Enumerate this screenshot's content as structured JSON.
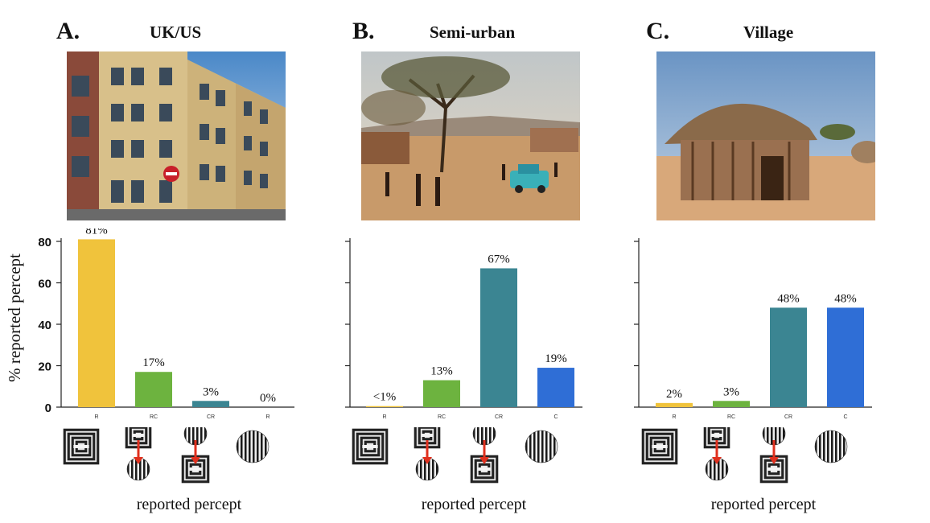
{
  "ylabel": "% reported percept",
  "xlabel": "reported percept",
  "colors": {
    "R": "#f0c33c",
    "RC": "#6db33f",
    "CR": "#3b8592",
    "C": "#2f6ed6",
    "arrow": "#e0301e"
  },
  "panels": [
    {
      "letter": "A.",
      "title": "UK/US",
      "photo_icon": "apartment-building-photo",
      "chart_data": {
        "type": "bar",
        "categories": [
          "R",
          "RC",
          "CR",
          "R"
        ],
        "values": [
          81,
          17,
          3,
          0
        ],
        "labels": [
          "81%",
          "17%",
          "3%",
          "0%"
        ],
        "ylabel": "% reported percept",
        "xlabel": "reported percept",
        "ylim": [
          0,
          80
        ],
        "yticks": [
          0,
          20,
          40,
          60,
          80
        ],
        "colors": [
          "#f0c33c",
          "#6db33f",
          "#3b8592",
          "#3b8592"
        ]
      }
    },
    {
      "letter": "B.",
      "title": "Semi-urban",
      "photo_icon": "town-street-photo",
      "chart_data": {
        "type": "bar",
        "categories": [
          "R",
          "RC",
          "CR",
          "C"
        ],
        "values": [
          0.5,
          13,
          67,
          19
        ],
        "labels": [
          "<1%",
          "13%",
          "67%",
          "19%"
        ],
        "xlabel": "reported percept",
        "ylim": [
          0,
          80
        ],
        "colors": [
          "#f0c33c",
          "#6db33f",
          "#3b8592",
          "#2f6ed6"
        ]
      }
    },
    {
      "letter": "C.",
      "title": "Village",
      "photo_icon": "thatched-hut-photo",
      "chart_data": {
        "type": "bar",
        "categories": [
          "R",
          "RC",
          "CR",
          "C"
        ],
        "values": [
          2,
          3,
          48,
          48
        ],
        "labels": [
          "2%",
          "3%",
          "48%",
          "48%"
        ],
        "xlabel": "reported percept",
        "ylim": [
          0,
          80
        ],
        "colors": [
          "#f0c33c",
          "#6db33f",
          "#3b8592",
          "#2f6ed6"
        ]
      }
    }
  ]
}
